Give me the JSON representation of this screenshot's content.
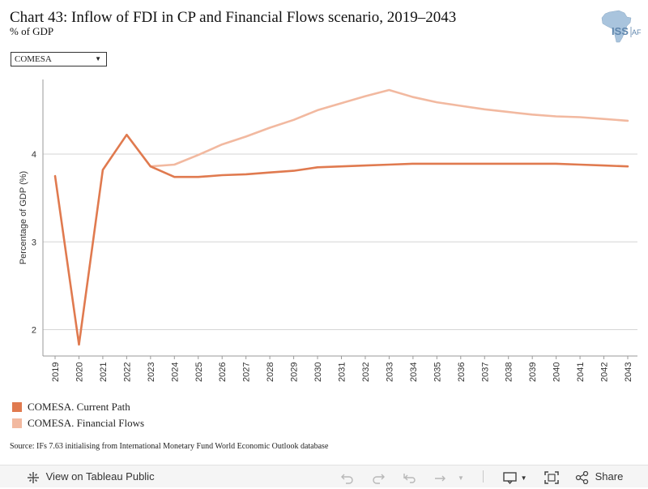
{
  "header": {
    "title": "Chart 43: Inflow of FDI in CP and Financial Flows scenario, 2019–2043",
    "subtitle": "% of GDP",
    "logo_text": "ISS",
    "logo_suffix": "AFI"
  },
  "filter": {
    "selected": "COMESA"
  },
  "colors": {
    "current_path": "#e07a4f",
    "financial_flows": "#f2b9a0",
    "grid": "#d6d6d6"
  },
  "chart_data": {
    "type": "line",
    "title": "Chart 43: Inflow of FDI in CP and Financial Flows scenario, 2019–2043",
    "subtitle": "% of GDP",
    "xlabel": "",
    "ylabel": "Percentage of GDP (%)",
    "x": [
      "2019",
      "2020",
      "2021",
      "2022",
      "2023",
      "2024",
      "2025",
      "2026",
      "2027",
      "2028",
      "2029",
      "2030",
      "2031",
      "2032",
      "2033",
      "2034",
      "2035",
      "2036",
      "2037",
      "2038",
      "2039",
      "2040",
      "2041",
      "2042",
      "2043"
    ],
    "ylim": [
      1.7,
      4.85
    ],
    "yticks": [
      2,
      3,
      4
    ],
    "grid": true,
    "legend_position": "bottom-left",
    "series": [
      {
        "name": "COMESA. Current Path",
        "values": [
          3.75,
          1.83,
          3.82,
          4.22,
          3.86,
          3.74,
          3.74,
          3.76,
          3.77,
          3.79,
          3.81,
          3.85,
          3.86,
          3.87,
          3.88,
          3.89,
          3.89,
          3.89,
          3.89,
          3.89,
          3.89,
          3.89,
          3.88,
          3.87,
          3.86
        ]
      },
      {
        "name": "COMESA. Financial Flows",
        "values": [
          null,
          null,
          null,
          null,
          3.86,
          3.88,
          3.99,
          4.11,
          4.2,
          4.3,
          4.39,
          4.5,
          4.58,
          4.66,
          4.73,
          4.65,
          4.59,
          4.55,
          4.51,
          4.48,
          4.45,
          4.43,
          4.42,
          4.4,
          4.38
        ]
      }
    ]
  },
  "source": "Source: IFs 7.63 initialising from International Monetary Fund World Economic Outlook database",
  "toolbar": {
    "view_label": "View on Tableau Public",
    "share_label": "Share"
  }
}
